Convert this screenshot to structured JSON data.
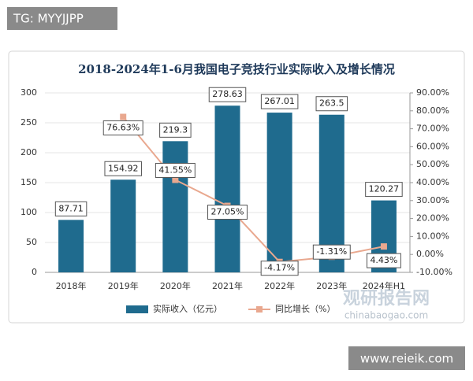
{
  "header": {
    "tag": "TG: MYYJJPP"
  },
  "chart_data": {
    "type": "bar",
    "title": "2018-2024年1-6月我国电子竞技行业实际收入及增长情况",
    "categories": [
      "2018年",
      "2019年",
      "2020年",
      "2021年",
      "2022年",
      "2023年",
      "2024年H1"
    ],
    "series": [
      {
        "name": "实际收入（亿元）",
        "type": "bar",
        "color": "#1f6b8e",
        "values": [
          87.71,
          154.92,
          219.3,
          278.63,
          267.01,
          263.5,
          120.27
        ]
      },
      {
        "name": "同比增长（%）",
        "type": "line",
        "axis": "y2",
        "color": "#e9a88f",
        "values": [
          null,
          76.63,
          41.55,
          27.05,
          -4.17,
          -1.31,
          4.43
        ],
        "value_labels": [
          null,
          "76.63%",
          "41.55%",
          "27.05%",
          "-4.17%",
          "-1.31%",
          "4.43%"
        ]
      }
    ],
    "ylim": [
      0,
      300
    ],
    "yticks": [
      0,
      50,
      100,
      150,
      200,
      250,
      300
    ],
    "y2lim": [
      -10,
      90
    ],
    "y2ticks": [
      {
        "value": -10,
        "label": "-10.00%"
      },
      {
        "value": 0,
        "label": "0.00%"
      },
      {
        "value": 10,
        "label": "10.00%"
      },
      {
        "value": 20,
        "label": "20.00%"
      },
      {
        "value": 30,
        "label": "30.00%"
      },
      {
        "value": 40,
        "label": "40.00%"
      },
      {
        "value": 50,
        "label": "50.00%"
      },
      {
        "value": 60,
        "label": "60.00%"
      },
      {
        "value": 70,
        "label": "70.00%"
      },
      {
        "value": 80,
        "label": "80.00%"
      },
      {
        "value": 90,
        "label": "90.00%"
      }
    ],
    "grid": true
  },
  "watermark": {
    "name": "观研报告网",
    "site": "chinabaogao.com"
  },
  "footer": {
    "url": "www.reieik.com"
  }
}
